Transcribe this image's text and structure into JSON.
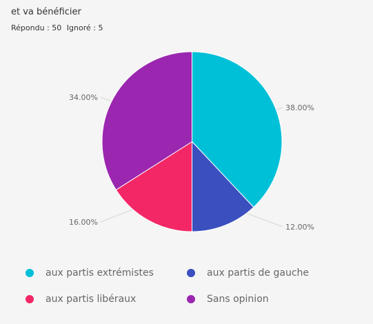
{
  "question": {
    "title": "et va bénéficier",
    "answered_label": "Répondu : 50",
    "ignored_label": "Ignoré : 5"
  },
  "chart_data": {
    "type": "pie",
    "title": "",
    "unit": "%",
    "start_angle_deg": 0,
    "direction": "clockwise",
    "slices": [
      {
        "name": "aux partis extrémistes",
        "value": 38.0,
        "label": "38.00%",
        "color": "#00c0d8"
      },
      {
        "name": "aux partis de gauche",
        "value": 12.0,
        "label": "12.00%",
        "color": "#3b4fbf"
      },
      {
        "name": "aux partis libéraux",
        "value": 16.0,
        "label": "16.00%",
        "color": "#f42766"
      },
      {
        "name": "Sans opinion",
        "value": 34.0,
        "label": "34.00%",
        "color": "#9b27b0"
      }
    ],
    "legend_placement": "bottom"
  }
}
